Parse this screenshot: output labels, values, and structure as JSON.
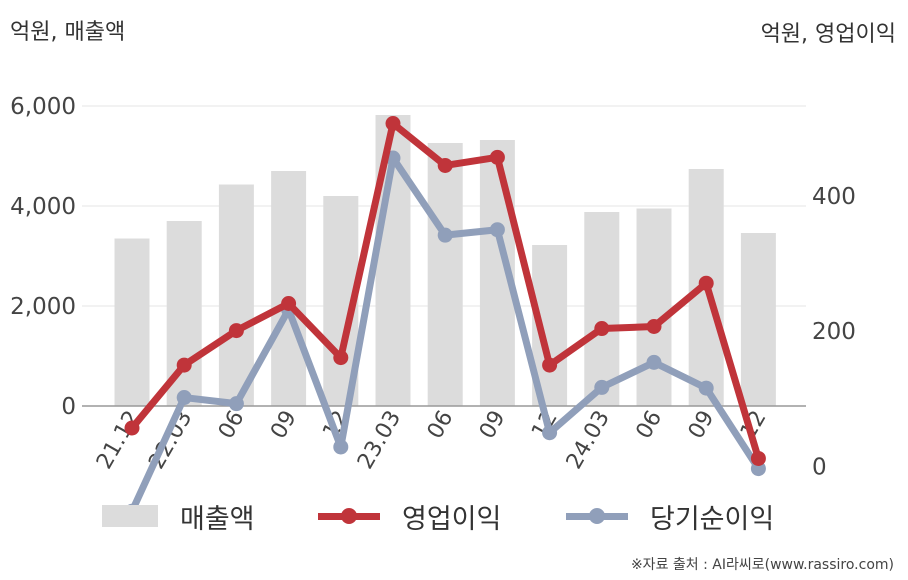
{
  "units": {
    "left": "억원, 매출액",
    "right": "억원, 영업이익"
  },
  "source": "※자료 출처 : AI라씨로(www.rassiro.com)",
  "colors": {
    "revenue": "#dcdcdc",
    "operating": "#c0343a",
    "net": "#909fba",
    "grid": "#e6e6e6",
    "axis": "#999999",
    "text": "#444444"
  },
  "chart_data": {
    "type": "bar",
    "categories": [
      "21.12",
      "22.03",
      "06",
      "09",
      "12",
      "23.03",
      "06",
      "09",
      "12",
      "24.03",
      "06",
      "09",
      "12"
    ],
    "series": [
      {
        "name": "매출액",
        "type": "bar",
        "axis": "left",
        "values": [
          3350,
          3700,
          4430,
          4700,
          4200,
          5820,
          5260,
          5320,
          3220,
          3880,
          3950,
          4740,
          3460
        ]
      },
      {
        "name": "영업이익",
        "type": "line",
        "axis": "right",
        "values": [
          57,
          150,
          201,
          241,
          161,
          507,
          445,
          457,
          150,
          204,
          207,
          271,
          12
        ]
      },
      {
        "name": "당기순이익",
        "type": "line",
        "axis": "right",
        "values": [
          -66,
          102,
          93,
          232,
          29,
          456,
          342,
          350,
          50,
          117,
          154,
          116,
          -3
        ]
      }
    ],
    "y_left": {
      "min": 0,
      "max": 6000,
      "ticks": [
        0,
        2000,
        4000,
        6000
      ],
      "tick_labels": [
        "0",
        "2,000",
        "4,000",
        "6,000"
      ]
    },
    "y_right": {
      "min": -76,
      "max": 524,
      "ticks": [
        0,
        200,
        400
      ],
      "tick_labels": [
        "0",
        "200",
        "400"
      ]
    },
    "grid": true,
    "legend_position": "bottom"
  }
}
